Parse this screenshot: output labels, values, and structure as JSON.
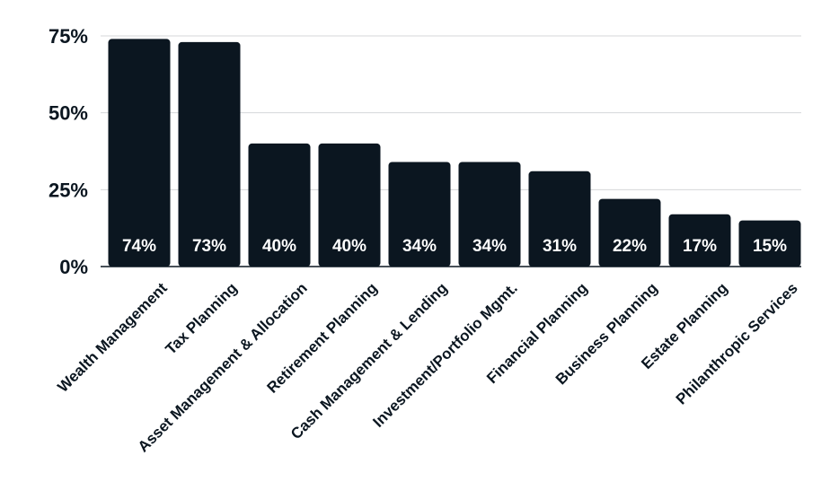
{
  "chart_data": {
    "type": "bar",
    "categories": [
      "Wealth Management",
      "Tax Planning",
      "Asset Management & Allocation",
      "Retirement Planning",
      "Cash Management & Lending",
      "Investment/Portfolio Mgmt.",
      "Financial Planning",
      "Business Planning",
      "Estate Planning",
      "Philanthropic Services"
    ],
    "values": [
      74,
      73,
      40,
      40,
      34,
      34,
      31,
      22,
      17,
      15
    ],
    "value_labels": [
      "74%",
      "73%",
      "40%",
      "40%",
      "34%",
      "34%",
      "31%",
      "22%",
      "17%",
      "15%"
    ],
    "title": "",
    "xlabel": "",
    "ylabel": "",
    "ylim": [
      0,
      75
    ],
    "yticks": [
      0,
      25,
      50,
      75
    ],
    "ytick_labels": [
      "0%",
      "25%",
      "50%",
      "75%"
    ],
    "grid": true,
    "bar_color": "#0b1620"
  }
}
